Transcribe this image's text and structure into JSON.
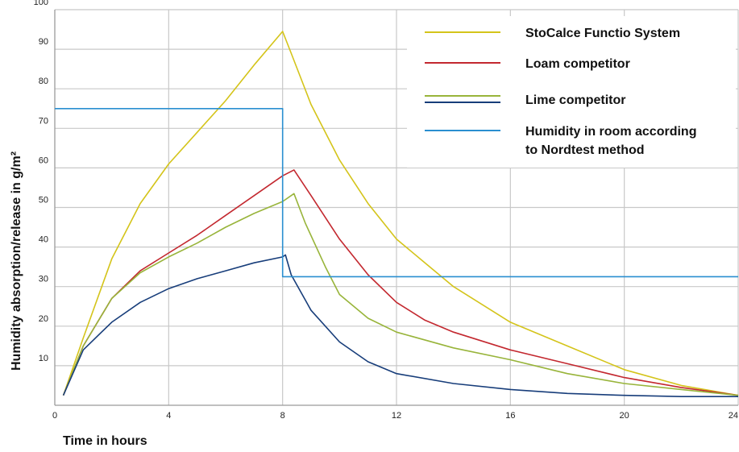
{
  "chart_data": {
    "type": "line",
    "title": "",
    "xlabel": "Time in hours",
    "ylabel": "Humidity absorption/release in g/m²",
    "xlim": [
      0,
      24
    ],
    "ylim": [
      0,
      100
    ],
    "x_ticks": [
      0,
      4,
      8,
      12,
      16,
      20,
      24
    ],
    "y_ticks": [
      10,
      20,
      30,
      40,
      50,
      60,
      70,
      80,
      90,
      100
    ],
    "grid": true,
    "legend_position": "top-right",
    "series": [
      {
        "name": "StoCalce Functio System",
        "color": "#d4c41a",
        "points": [
          [
            0.3,
            2.5
          ],
          [
            1,
            17
          ],
          [
            2,
            37
          ],
          [
            3,
            51
          ],
          [
            4,
            61
          ],
          [
            5,
            69
          ],
          [
            6,
            77
          ],
          [
            7,
            86
          ],
          [
            8,
            94.5
          ],
          [
            8.3,
            89
          ],
          [
            9,
            76
          ],
          [
            10,
            62
          ],
          [
            11,
            51
          ],
          [
            12,
            42
          ],
          [
            13,
            36
          ],
          [
            14,
            30
          ],
          [
            16,
            21
          ],
          [
            18,
            15
          ],
          [
            20,
            9
          ],
          [
            22,
            5
          ],
          [
            24,
            2.5
          ]
        ]
      },
      {
        "name": "Loam competitor",
        "color": "#c3282f",
        "points": [
          [
            0.3,
            2.5
          ],
          [
            1,
            15
          ],
          [
            2,
            27
          ],
          [
            3,
            34
          ],
          [
            4,
            38.5
          ],
          [
            5,
            43
          ],
          [
            6,
            48
          ],
          [
            7,
            53
          ],
          [
            8,
            58
          ],
          [
            8.4,
            59.5
          ],
          [
            9,
            53
          ],
          [
            10,
            42
          ],
          [
            11,
            33
          ],
          [
            12,
            26
          ],
          [
            13,
            21.5
          ],
          [
            14,
            18.5
          ],
          [
            16,
            14
          ],
          [
            18,
            10.5
          ],
          [
            20,
            7
          ],
          [
            22,
            4.5
          ],
          [
            24,
            2.5
          ]
        ]
      },
      {
        "name": "Lime competitor",
        "color": "#98b43a",
        "points": [
          [
            0.3,
            2.5
          ],
          [
            1,
            15
          ],
          [
            2,
            27
          ],
          [
            3,
            33.5
          ],
          [
            4,
            37.5
          ],
          [
            5,
            41
          ],
          [
            6,
            45
          ],
          [
            7,
            48.5
          ],
          [
            8,
            51.5
          ],
          [
            8.4,
            53.5
          ],
          [
            8.8,
            46
          ],
          [
            9.5,
            35
          ],
          [
            10,
            28
          ],
          [
            11,
            22
          ],
          [
            12,
            18.5
          ],
          [
            14,
            14.5
          ],
          [
            16,
            11.5
          ],
          [
            18,
            8
          ],
          [
            20,
            5.5
          ],
          [
            22,
            4
          ],
          [
            24,
            2.5
          ]
        ]
      },
      {
        "name": "",
        "color": "#173d7a",
        "points": [
          [
            0.3,
            2.5
          ],
          [
            1,
            14
          ],
          [
            2,
            21
          ],
          [
            3,
            26
          ],
          [
            4,
            29.5
          ],
          [
            5,
            32
          ],
          [
            6,
            34
          ],
          [
            7,
            36
          ],
          [
            8,
            37.5
          ],
          [
            8.1,
            38
          ],
          [
            8.3,
            33
          ],
          [
            9,
            24
          ],
          [
            10,
            16
          ],
          [
            11,
            11
          ],
          [
            12,
            8
          ],
          [
            14,
            5.5
          ],
          [
            16,
            4
          ],
          [
            18,
            3
          ],
          [
            20,
            2.5
          ],
          [
            22,
            2.2
          ],
          [
            24,
            2.2
          ]
        ]
      },
      {
        "name": "Humidity in room according to Nordtest method",
        "color": "#2a8fd0",
        "points": [
          [
            0,
            75
          ],
          [
            8,
            75
          ],
          [
            8,
            32.5
          ],
          [
            24,
            32.5
          ]
        ]
      }
    ],
    "legend": [
      {
        "label": "StoCalce Functio System",
        "color": "#d4c41a"
      },
      {
        "label": "Loam competitor",
        "color": "#c3282f"
      },
      {
        "label": "Lime competitor",
        "color": "#98b43a",
        "second_color": "#173d7a"
      },
      {
        "label": "Humidity in room according",
        "label2": "to Nordtest method",
        "color": "#2a8fd0"
      }
    ]
  }
}
